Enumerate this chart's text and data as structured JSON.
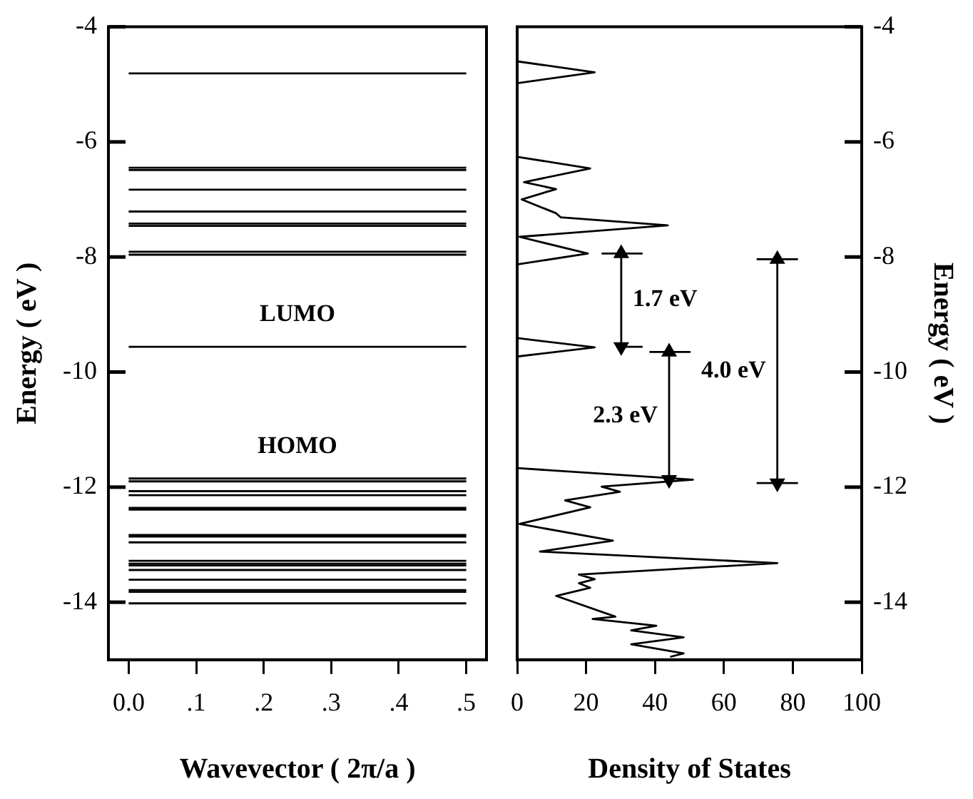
{
  "chart_data": [
    {
      "type": "line",
      "xlabel": "Wavevector ( 2π/a )",
      "ylabel": "Energy ( eV )",
      "xlim": [
        -0.03,
        0.53
      ],
      "ylim": [
        -15,
        -4
      ],
      "xticks": [
        {
          "value": 0,
          "label": "0.0"
        },
        {
          "value": 0.1,
          "label": ".1"
        },
        {
          "value": 0.2,
          "label": ".2"
        },
        {
          "value": 0.3,
          "label": ".3"
        },
        {
          "value": 0.4,
          "label": ".4"
        },
        {
          "value": 0.5,
          "label": ".5"
        }
      ],
      "yticks": [
        -4,
        -6,
        -8,
        -10,
        -12,
        -14
      ],
      "grid": false,
      "legend": false,
      "marker": "none",
      "annotations": [
        {
          "text": "LUMO",
          "x": 0.25,
          "y": -9.56
        },
        {
          "text": "HOMO",
          "x": 0.25,
          "y": -11.85
        }
      ],
      "series": [
        {
          "color": "#000000",
          "x": [
            0,
            0.5
          ],
          "values": [
            -4.81,
            -4.81
          ]
        },
        {
          "color": "#000000",
          "x": [
            0,
            0.5
          ],
          "values": [
            -6.45,
            -6.45
          ]
        },
        {
          "color": "#000000",
          "x": [
            0,
            0.5
          ],
          "values": [
            -6.49,
            -6.49
          ]
        },
        {
          "color": "#000000",
          "x": [
            0,
            0.5
          ],
          "values": [
            -6.83,
            -6.83
          ]
        },
        {
          "color": "#000000",
          "x": [
            0,
            0.5
          ],
          "values": [
            -7.21,
            -7.21
          ]
        },
        {
          "color": "#000000",
          "x": [
            0,
            0.5
          ],
          "values": [
            -7.42,
            -7.42
          ]
        },
        {
          "color": "#000000",
          "x": [
            0,
            0.5
          ],
          "values": [
            -7.46,
            -7.46
          ]
        },
        {
          "color": "#000000",
          "x": [
            0,
            0.5
          ],
          "values": [
            -7.91,
            -7.91
          ]
        },
        {
          "color": "#000000",
          "x": [
            0,
            0.5
          ],
          "values": [
            -7.96,
            -7.96
          ]
        },
        {
          "color": "#000000",
          "x": [
            0,
            0.5
          ],
          "values": [
            -9.56,
            -9.56
          ]
        },
        {
          "color": "#000000",
          "x": [
            0,
            0.5
          ],
          "values": [
            -11.85,
            -11.85
          ]
        },
        {
          "color": "#000000",
          "x": [
            0,
            0.5
          ],
          "values": [
            -11.9,
            -11.9
          ]
        },
        {
          "color": "#000000",
          "x": [
            0,
            0.5
          ],
          "values": [
            -12.07,
            -12.07
          ]
        },
        {
          "color": "#000000",
          "x": [
            0,
            0.5
          ],
          "values": [
            -12.14,
            -12.14
          ]
        },
        {
          "color": "#000000",
          "x": [
            0,
            0.5
          ],
          "values": [
            -12.36,
            -12.36
          ]
        },
        {
          "color": "#000000",
          "x": [
            0,
            0.5
          ],
          "values": [
            -12.39,
            -12.39
          ]
        },
        {
          "color": "#000000",
          "x": [
            0,
            0.5
          ],
          "values": [
            -12.83,
            -12.83
          ]
        },
        {
          "color": "#000000",
          "x": [
            0,
            0.5
          ],
          "values": [
            -12.86,
            -12.86
          ]
        },
        {
          "color": "#000000",
          "x": [
            0,
            0.5
          ],
          "values": [
            -12.96,
            -12.96
          ]
        },
        {
          "color": "#000000",
          "x": [
            0,
            0.5
          ],
          "values": [
            -13.28,
            -13.28
          ]
        },
        {
          "color": "#000000",
          "x": [
            0,
            0.5
          ],
          "values": [
            -13.33,
            -13.33
          ]
        },
        {
          "color": "#000000",
          "x": [
            0,
            0.5
          ],
          "values": [
            -13.36,
            -13.36
          ]
        },
        {
          "color": "#000000",
          "x": [
            0,
            0.5
          ],
          "values": [
            -13.44,
            -13.44
          ]
        },
        {
          "color": "#000000",
          "x": [
            0,
            0.5
          ],
          "values": [
            -13.61,
            -13.61
          ]
        },
        {
          "color": "#000000",
          "x": [
            0,
            0.5
          ],
          "values": [
            -13.79,
            -13.79
          ]
        },
        {
          "color": "#000000",
          "x": [
            0,
            0.5
          ],
          "values": [
            -13.82,
            -13.82
          ]
        },
        {
          "color": "#000000",
          "x": [
            0,
            0.5
          ],
          "values": [
            -14.02,
            -14.02
          ]
        }
      ]
    },
    {
      "type": "line",
      "xlabel": "Density of States",
      "y2label": "Energy ( eV )",
      "xlim": [
        0,
        100
      ],
      "y2lim": [
        -15,
        -4
      ],
      "xticks": [
        0,
        20,
        40,
        60,
        80,
        100
      ],
      "y2ticks": [
        -4,
        -6,
        -8,
        -10,
        -12,
        -14
      ],
      "grid": false,
      "legend": false,
      "marker": "none",
      "annotations": [
        "1.7 eV",
        "2.3 eV",
        "4.0 eV"
      ],
      "series": [
        {
          "color": "#000000",
          "axis": "y2",
          "x": [
            0,
            22.5,
            0,
            0,
            21.2,
            2,
            11.3,
            1.3,
            11.3,
            12.6,
            43.7,
            0.7,
            20.5,
            0,
            0,
            22.5,
            0,
            0,
            51,
            24.5,
            29.8,
            13.9,
            21.2,
            0.7,
            27.8,
            6.6,
            75.5,
            17.9,
            22.5,
            17.9,
            21.2,
            11.3,
            28.5,
            21.9,
            40.4,
            33.1,
            48.3,
            33.1,
            48.3,
            44.4
          ],
          "values": [
            -4.6,
            -4.79,
            -4.98,
            -6.26,
            -6.46,
            -6.7,
            -6.82,
            -7.0,
            -7.24,
            -7.31,
            -7.45,
            -7.65,
            -7.94,
            -8.13,
            -9.41,
            -9.57,
            -9.73,
            -11.67,
            -11.87,
            -11.99,
            -12.08,
            -12.23,
            -12.35,
            -12.64,
            -12.93,
            -13.12,
            -13.32,
            -13.52,
            -13.6,
            -13.67,
            -13.75,
            -13.89,
            -14.25,
            -14.29,
            -14.41,
            -14.49,
            -14.61,
            -14.73,
            -14.89,
            -14.95
          ]
        },
        {
          "color": "#000000",
          "axis": "y2",
          "marker": "triangle",
          "x": [
            30.2,
            30.2
          ],
          "values": [
            -7.94,
            -9.56
          ]
        },
        {
          "color": "#000000",
          "axis": "y2",
          "x": [
            24.5,
            36.4
          ],
          "values": [
            -7.94,
            -7.94
          ]
        },
        {
          "color": "#000000",
          "axis": "y2",
          "x": [
            29.4,
            36.4
          ],
          "values": [
            -9.56,
            -9.56
          ]
        },
        {
          "color": "#000000",
          "axis": "y2",
          "marker": "triangle",
          "x": [
            44.1,
            44.1
          ],
          "values": [
            -9.65,
            -11.87
          ]
        },
        {
          "color": "#000000",
          "axis": "y2",
          "x": [
            38.4,
            50.3
          ],
          "values": [
            -9.65,
            -9.65
          ]
        },
        {
          "color": "#000000",
          "axis": "y2",
          "marker": "triangle",
          "x": [
            75.5,
            75.5
          ],
          "values": [
            -8.04,
            -11.93
          ]
        },
        {
          "color": "#000000",
          "axis": "y2",
          "x": [
            69.5,
            81.5
          ],
          "values": [
            -8.04,
            -8.04
          ]
        },
        {
          "color": "#000000",
          "axis": "y2",
          "x": [
            69.5,
            81.5
          ],
          "values": [
            -11.93,
            -11.93
          ]
        }
      ]
    }
  ]
}
